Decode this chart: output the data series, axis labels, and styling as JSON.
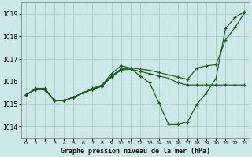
{
  "title": "Graphe pression niveau de la mer (hPa)",
  "bg_color": "#cce8e8",
  "grid_color": "#aacccc",
  "line_color": "#1a5c1a",
  "xlim": [
    -0.5,
    23.5
  ],
  "ylim": [
    1013.5,
    1019.5
  ],
  "yticks": [
    1014,
    1015,
    1016,
    1017,
    1018,
    1019
  ],
  "xticks": [
    0,
    1,
    2,
    3,
    4,
    5,
    6,
    7,
    8,
    9,
    10,
    11,
    12,
    13,
    14,
    15,
    16,
    17,
    18,
    19,
    20,
    21,
    22,
    23
  ],
  "series": [
    {
      "x": [
        0,
        1,
        2,
        3,
        4,
        5,
        6,
        7,
        8,
        9,
        10,
        11,
        12,
        13,
        14,
        15,
        16,
        17,
        18,
        19,
        20,
        21,
        22,
        23
      ],
      "y": [
        1015.4,
        1015.7,
        1015.7,
        1015.15,
        1015.15,
        1015.3,
        1015.5,
        1015.7,
        1015.85,
        1016.35,
        1016.7,
        1016.6,
        1016.25,
        1015.95,
        1015.05,
        1014.1,
        1014.1,
        1014.2,
        1015.0,
        1015.5,
        1016.15,
        1018.35,
        1018.85,
        1019.1
      ]
    },
    {
      "x": [
        0,
        1,
        2,
        3,
        4,
        5,
        6,
        7,
        8,
        9,
        10,
        11,
        12,
        13,
        14,
        15,
        16,
        17,
        18,
        19,
        20,
        21,
        22,
        23
      ],
      "y": [
        1015.4,
        1015.65,
        1015.65,
        1015.15,
        1015.15,
        1015.3,
        1015.5,
        1015.65,
        1015.8,
        1016.2,
        1016.5,
        1016.55,
        1016.45,
        1016.35,
        1016.25,
        1016.15,
        1015.95,
        1015.85,
        1015.85,
        1015.85,
        1015.85,
        1015.85,
        1015.85,
        1015.85
      ]
    },
    {
      "x": [
        0,
        1,
        2,
        3,
        4,
        5,
        6,
        7,
        8,
        9,
        10,
        11,
        12,
        13,
        14,
        15,
        16,
        17,
        18,
        19,
        20,
        21,
        22,
        23
      ],
      "y": [
        1015.4,
        1015.65,
        1015.65,
        1015.15,
        1015.15,
        1015.3,
        1015.5,
        1015.65,
        1015.8,
        1016.25,
        1016.55,
        1016.6,
        1016.55,
        1016.5,
        1016.4,
        1016.3,
        1016.2,
        1016.1,
        1016.6,
        1016.7,
        1016.75,
        1017.85,
        1018.4,
        1019.05
      ]
    },
    {
      "x": [
        0,
        1,
        2,
        3,
        4,
        5,
        6,
        7,
        8,
        9,
        10
      ],
      "y": [
        1015.4,
        1015.65,
        1015.65,
        1015.15,
        1015.15,
        1015.3,
        1015.5,
        1015.65,
        1015.8,
        1016.25,
        1016.55
      ]
    }
  ]
}
